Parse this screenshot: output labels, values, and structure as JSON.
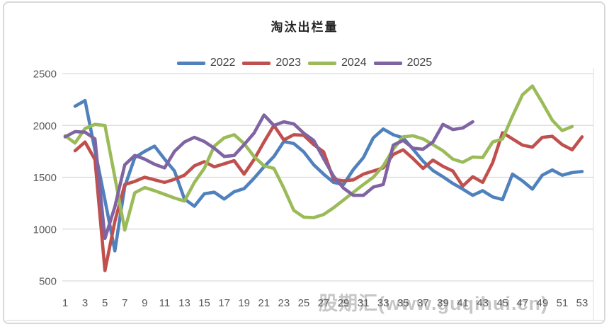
{
  "watermark": "股期汇(www.guqihui.cn)",
  "chart_data": {
    "type": "line",
    "title": "淘汰出栏量",
    "xlabel": "",
    "ylabel": "",
    "x_unit": "week",
    "x_range": [
      1,
      53
    ],
    "ylim": [
      500,
      2500
    ],
    "y_ticks": [
      500,
      1000,
      1500,
      2000,
      2500
    ],
    "x_ticks": [
      1,
      3,
      5,
      7,
      9,
      11,
      13,
      15,
      17,
      19,
      21,
      23,
      25,
      27,
      29,
      31,
      33,
      35,
      37,
      39,
      41,
      43,
      45,
      47,
      49,
      51,
      53
    ],
    "grid": "horizontal",
    "legend_position": "top",
    "axis_text_color": "#595959",
    "grid_color": "#d9d9d9",
    "series": [
      {
        "name": "2022",
        "color": "#4F81BD",
        "start_week": 2,
        "values": [
          2185,
          2240,
          1760,
          1280,
          790,
          1410,
          1690,
          1750,
          1800,
          1675,
          1560,
          1290,
          1220,
          1340,
          1355,
          1290,
          1360,
          1390,
          1490,
          1600,
          1700,
          1845,
          1825,
          1745,
          1620,
          1530,
          1450,
          1430,
          1575,
          1690,
          1880,
          1965,
          1910,
          1880,
          1770,
          1655,
          1565,
          1505,
          1440,
          1385,
          1325,
          1370,
          1310,
          1285,
          1530,
          1465,
          1385,
          1520,
          1570,
          1520,
          1545,
          1555
        ]
      },
      {
        "name": "2023",
        "color": "#C0504D",
        "start_week": 2,
        "values": [
          1755,
          1840,
          1670,
          600,
          1075,
          1430,
          1460,
          1500,
          1475,
          1450,
          1480,
          1520,
          1610,
          1650,
          1600,
          1630,
          1660,
          1530,
          1670,
          1840,
          2000,
          1860,
          1910,
          1905,
          1815,
          1745,
          1480,
          1465,
          1475,
          1530,
          1560,
          1590,
          1720,
          1765,
          1680,
          1585,
          1665,
          1605,
          1560,
          1415,
          1505,
          1450,
          1640,
          1930,
          1870,
          1810,
          1790,
          1885,
          1895,
          1815,
          1765,
          1890
        ]
      },
      {
        "name": "2024",
        "color": "#9BBB59",
        "start_week": 1,
        "values": [
          1900,
          1830,
          1970,
          2010,
          2000,
          1500,
          990,
          1350,
          1400,
          1370,
          1335,
          1300,
          1270,
          1450,
          1585,
          1800,
          1880,
          1910,
          1825,
          1700,
          1610,
          1585,
          1395,
          1180,
          1115,
          1110,
          1140,
          1205,
          1280,
          1355,
          1430,
          1500,
          1610,
          1770,
          1890,
          1900,
          1870,
          1815,
          1755,
          1675,
          1645,
          1695,
          1690,
          1840,
          1870,
          2090,
          2295,
          2380,
          2220,
          2050,
          1950,
          1990
        ]
      },
      {
        "name": "2025",
        "color": "#8064A2",
        "start_week": 1,
        "values": [
          1890,
          1940,
          1935,
          1870,
          910,
          1215,
          1620,
          1710,
          1675,
          1625,
          1590,
          1750,
          1840,
          1885,
          1845,
          1780,
          1700,
          1710,
          1815,
          1925,
          2100,
          2000,
          2035,
          2015,
          1925,
          1855,
          1680,
          1510,
          1395,
          1325,
          1325,
          1405,
          1430,
          1810,
          1855,
          1780,
          1770,
          1840,
          2010,
          1960,
          1975,
          2035
        ]
      }
    ]
  }
}
